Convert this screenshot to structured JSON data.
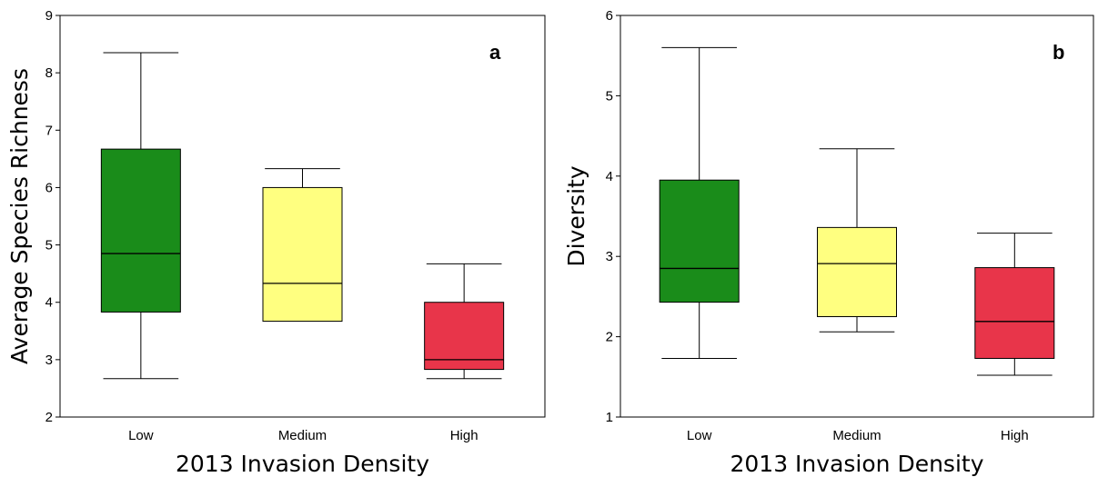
{
  "chart_data": [
    {
      "type": "box",
      "panel_label": "a",
      "xlabel": "2013 Invasion Density",
      "ylabel": "Average Species Richness",
      "ylim": [
        2,
        9
      ],
      "yticks": [
        "2",
        "3",
        "4",
        "5",
        "6",
        "7",
        "8",
        "9"
      ],
      "grid": false,
      "categories": [
        "Low",
        "Medium",
        "High"
      ],
      "boxes": [
        {
          "category": "Low",
          "min": 2.67,
          "q1": 3.83,
          "median": 4.85,
          "q3": 6.67,
          "max": 8.35,
          "color": "#1a8c1a"
        },
        {
          "category": "Medium",
          "min": 3.67,
          "q1": 3.67,
          "median": 4.33,
          "q3": 6.0,
          "max": 6.33,
          "color": "#ffff80"
        },
        {
          "category": "High",
          "min": 2.67,
          "q1": 2.83,
          "median": 3.0,
          "q3": 4.0,
          "max": 4.67,
          "color": "#e8354a"
        }
      ]
    },
    {
      "type": "box",
      "panel_label": "b",
      "xlabel": "2013 Invasion Density",
      "ylabel": "Diversity",
      "ylim": [
        1,
        6
      ],
      "yticks": [
        "1",
        "2",
        "3",
        "4",
        "5",
        "6"
      ],
      "grid": false,
      "categories": [
        "Low",
        "Medium",
        "High"
      ],
      "boxes": [
        {
          "category": "Low",
          "min": 1.73,
          "q1": 2.43,
          "median": 2.85,
          "q3": 3.95,
          "max": 5.6,
          "color": "#1a8c1a"
        },
        {
          "category": "Medium",
          "min": 2.06,
          "q1": 2.25,
          "median": 2.91,
          "q3": 3.36,
          "max": 4.34,
          "color": "#ffff80"
        },
        {
          "category": "High",
          "min": 1.52,
          "q1": 1.73,
          "median": 2.19,
          "q3": 2.86,
          "max": 3.29,
          "color": "#e8354a"
        }
      ]
    }
  ]
}
